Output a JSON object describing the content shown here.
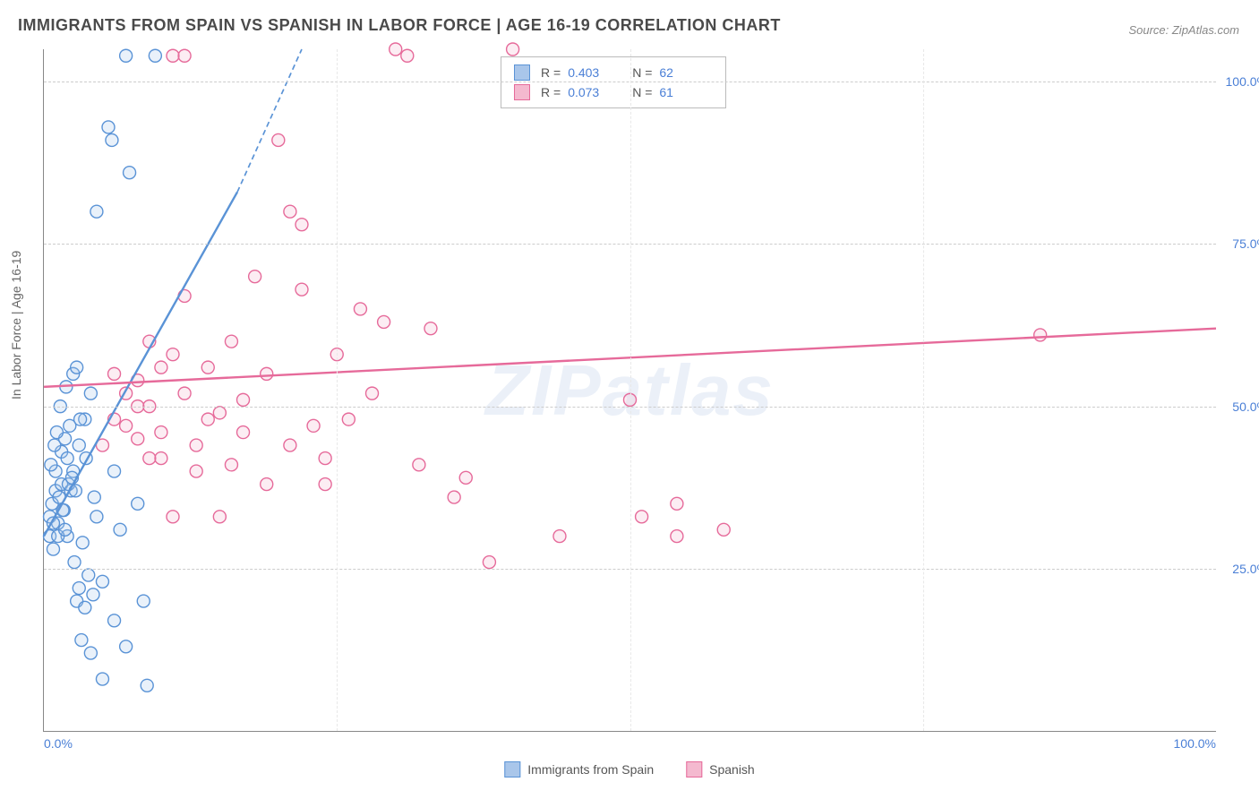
{
  "title": "IMMIGRANTS FROM SPAIN VS SPANISH IN LABOR FORCE | AGE 16-19 CORRELATION CHART",
  "source_label": "Source: ZipAtlas.com",
  "y_axis_title": "In Labor Force | Age 16-19",
  "watermark": "ZIPatlas",
  "chart": {
    "type": "scatter-correlation",
    "background_color": "#ffffff",
    "grid_color_h": "#cccccc",
    "grid_color_v": "#e8e8e8",
    "axis_color": "#888888",
    "tick_label_color": "#4a7fd6",
    "xlim": [
      0,
      100
    ],
    "ylim": [
      0,
      105
    ],
    "xticks": [
      0,
      25,
      50,
      75,
      100
    ],
    "xtick_labels": [
      "0.0%",
      "",
      "",
      "",
      "100.0%"
    ],
    "yticks": [
      25,
      50,
      75,
      100
    ],
    "ytick_labels": [
      "25.0%",
      "50.0%",
      "75.0%",
      "100.0%"
    ],
    "marker_radius": 7,
    "marker_stroke_width": 1.4,
    "marker_fill_opacity": 0.25,
    "trend_line_width": 2.4,
    "series": [
      {
        "key": "immigrants",
        "label": "Immigrants from Spain",
        "color": "#5a93d6",
        "fill": "#a9c6ea",
        "R": "0.403",
        "N": "62",
        "trend": {
          "x1": 0,
          "y1": 30,
          "x2": 16.5,
          "y2": 83,
          "dash_x2": 22,
          "dash_y2": 105
        },
        "points": [
          [
            0.5,
            30
          ],
          [
            0.5,
            33
          ],
          [
            0.7,
            35
          ],
          [
            0.8,
            28
          ],
          [
            1.0,
            37
          ],
          [
            1.0,
            40
          ],
          [
            1.2,
            32
          ],
          [
            1.3,
            36
          ],
          [
            1.5,
            38
          ],
          [
            1.5,
            43
          ],
          [
            1.7,
            34
          ],
          [
            1.8,
            45
          ],
          [
            2.0,
            30
          ],
          [
            2.0,
            42
          ],
          [
            2.2,
            47
          ],
          [
            2.3,
            37
          ],
          [
            2.5,
            40
          ],
          [
            2.5,
            55
          ],
          [
            2.8,
            20
          ],
          [
            3.0,
            22
          ],
          [
            3.0,
            44
          ],
          [
            3.2,
            14
          ],
          [
            3.5,
            19
          ],
          [
            3.5,
            48
          ],
          [
            3.8,
            24
          ],
          [
            4.0,
            12
          ],
          [
            4.0,
            52
          ],
          [
            4.2,
            21
          ],
          [
            4.5,
            33
          ],
          [
            4.5,
            80
          ],
          [
            5.0,
            23
          ],
          [
            5.0,
            8
          ],
          [
            5.5,
            93
          ],
          [
            5.8,
            91
          ],
          [
            6.0,
            17
          ],
          [
            6.0,
            40
          ],
          [
            6.5,
            31
          ],
          [
            7.0,
            13
          ],
          [
            7.0,
            104
          ],
          [
            7.3,
            86
          ],
          [
            8.0,
            35
          ],
          [
            8.5,
            20
          ],
          [
            8.8,
            7
          ],
          [
            9.5,
            104
          ],
          [
            2.8,
            56
          ],
          [
            1.2,
            30
          ],
          [
            1.8,
            31
          ],
          [
            0.9,
            44
          ],
          [
            2.1,
            38
          ],
          [
            3.3,
            29
          ],
          [
            1.4,
            50
          ],
          [
            2.6,
            26
          ],
          [
            0.6,
            41
          ],
          [
            1.1,
            46
          ],
          [
            1.6,
            34
          ],
          [
            2.4,
            39
          ],
          [
            3.1,
            48
          ],
          [
            0.8,
            32
          ],
          [
            1.9,
            53
          ],
          [
            2.7,
            37
          ],
          [
            3.6,
            42
          ],
          [
            4.3,
            36
          ]
        ]
      },
      {
        "key": "spanish",
        "label": "Spanish",
        "color": "#e66a9a",
        "fill": "#f4b9cf",
        "R": "0.073",
        "N": "61",
        "trend": {
          "x1": 0,
          "y1": 53,
          "x2": 100,
          "y2": 62
        },
        "points": [
          [
            11,
            104
          ],
          [
            12,
            104
          ],
          [
            22,
            68
          ],
          [
            20,
            91
          ],
          [
            22,
            78
          ],
          [
            27,
            65
          ],
          [
            29,
            63
          ],
          [
            30,
            105
          ],
          [
            31,
            104
          ],
          [
            33,
            62
          ],
          [
            35,
            36
          ],
          [
            36,
            39
          ],
          [
            38,
            26
          ],
          [
            40,
            105
          ],
          [
            44,
            30
          ],
          [
            50,
            51
          ],
          [
            51,
            33
          ],
          [
            54,
            35
          ],
          [
            54,
            30
          ],
          [
            58,
            31
          ],
          [
            5,
            44
          ],
          [
            6,
            48
          ],
          [
            7,
            47
          ],
          [
            8,
            45
          ],
          [
            8,
            54
          ],
          [
            9,
            50
          ],
          [
            10,
            42
          ],
          [
            10,
            46
          ],
          [
            11,
            33
          ],
          [
            12,
            52
          ],
          [
            13,
            40
          ],
          [
            14,
            48
          ],
          [
            15,
            33
          ],
          [
            16,
            41
          ],
          [
            17,
            51
          ],
          [
            18,
            70
          ],
          [
            19,
            38
          ],
          [
            21,
            80
          ],
          [
            24,
            42
          ],
          [
            25,
            58
          ],
          [
            26,
            48
          ],
          [
            28,
            52
          ],
          [
            32,
            41
          ],
          [
            12,
            67
          ],
          [
            14,
            56
          ],
          [
            9,
            60
          ],
          [
            6,
            55
          ],
          [
            11,
            58
          ],
          [
            17,
            46
          ],
          [
            23,
            47
          ],
          [
            85,
            61
          ],
          [
            8,
            50
          ],
          [
            10,
            56
          ],
          [
            13,
            44
          ],
          [
            15,
            49
          ],
          [
            19,
            55
          ],
          [
            21,
            44
          ],
          [
            24,
            38
          ],
          [
            7,
            52
          ],
          [
            16,
            60
          ],
          [
            9,
            42
          ]
        ]
      }
    ]
  },
  "legend_top": {
    "rows": [
      {
        "swatch_series": "immigrants",
        "R_label": "R =",
        "N_label": "N ="
      },
      {
        "swatch_series": "spanish",
        "R_label": "R =",
        "N_label": "N ="
      }
    ]
  },
  "legend_bottom": {
    "items": [
      {
        "series": "immigrants"
      },
      {
        "series": "spanish"
      }
    ]
  }
}
